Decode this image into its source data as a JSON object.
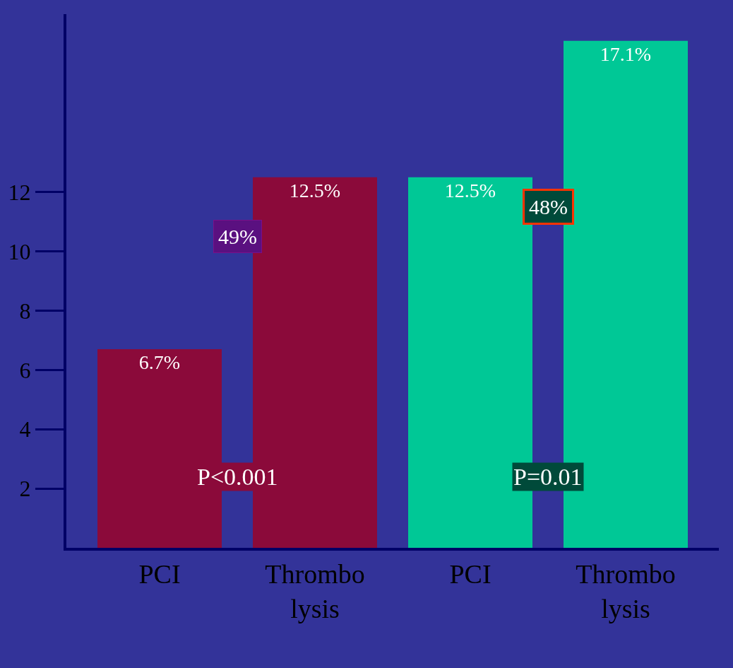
{
  "chart_data": {
    "type": "bar",
    "categories": [
      "PCI",
      "Thrombo\nlysis",
      "PCI",
      "Thrombo\nlysis"
    ],
    "values": [
      6.7,
      12.5,
      12.5,
      17.1
    ],
    "value_labels": [
      "6.7%",
      "12.5%",
      "12.5%",
      "17.1%"
    ],
    "colors": [
      "#8b0a3a",
      "#8b0a3a",
      "#00c896",
      "#00c896"
    ],
    "ylim": [
      0,
      18
    ],
    "yticks": [
      2,
      4,
      6,
      8,
      10,
      12
    ],
    "annotations": [
      "49%",
      "48%",
      "P<0.001",
      "P=0.01"
    ],
    "grid": false
  }
}
